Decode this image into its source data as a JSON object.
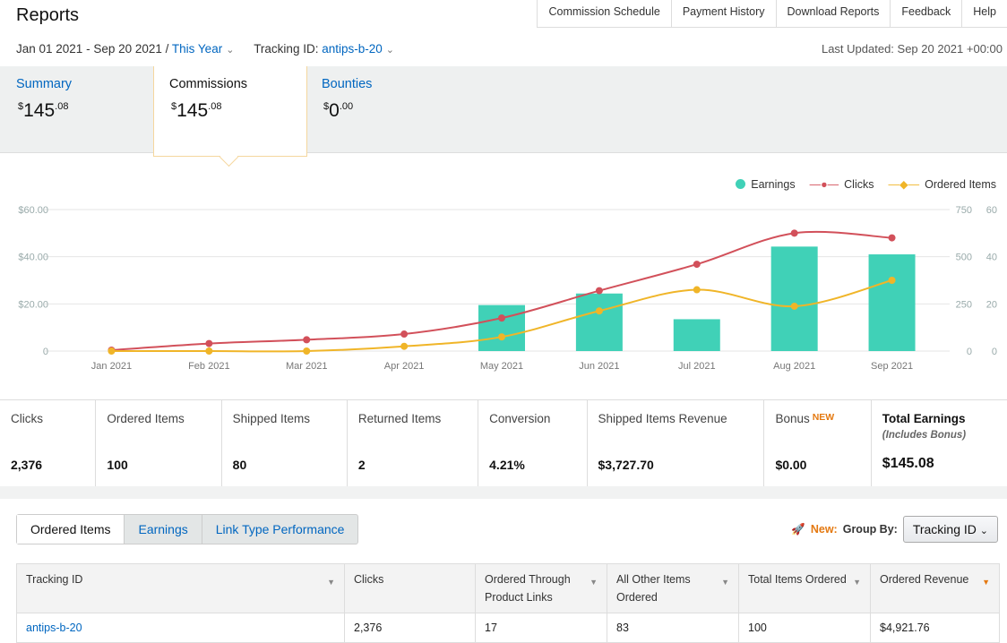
{
  "header": {
    "title": "Reports",
    "nav": [
      "Commission Schedule",
      "Payment History",
      "Download Reports",
      "Feedback",
      "Help"
    ],
    "date_range": "Jan 01 2021 - Sep 20 2021 / ",
    "date_preset": "This Year",
    "tracking_label": "Tracking ID: ",
    "tracking_value": "antips-b-20",
    "last_updated": "Last Updated: Sep 20 2021 +00:00"
  },
  "summary_tabs": [
    {
      "label": "Summary",
      "currency": "$",
      "whole": "145",
      "cents": ".08"
    },
    {
      "label": "Commissions",
      "currency": "$",
      "whole": "145",
      "cents": ".08"
    },
    {
      "label": "Bounties",
      "currency": "$",
      "whole": "0",
      "cents": ".00"
    }
  ],
  "chart_data": {
    "type": "bar",
    "categories": [
      "Jan 2021",
      "Feb 2021",
      "Mar 2021",
      "Apr 2021",
      "May 2021",
      "Jun 2021",
      "Jul 2021",
      "Aug 2021",
      "Sep 2021"
    ],
    "series": [
      {
        "name": "Earnings",
        "type": "bar",
        "axis": "left",
        "color": "#40d1b7",
        "values": [
          0,
          0,
          0,
          0,
          19.5,
          24.4,
          13.5,
          44.3,
          41.0
        ]
      },
      {
        "name": "Clicks",
        "type": "line",
        "axis": "right-1",
        "color": "#d2505a",
        "values": [
          5,
          40,
          60,
          90,
          175,
          320,
          460,
          625,
          600
        ]
      },
      {
        "name": "Ordered Items",
        "type": "line",
        "axis": "right-2",
        "color": "#f0b528",
        "values": [
          0,
          0,
          0,
          2,
          6,
          17,
          26,
          19,
          30
        ]
      }
    ],
    "y_left": {
      "ticks": [
        "0",
        "$20.00",
        "$40.00",
        "$60.00"
      ],
      "range": [
        0,
        60
      ]
    },
    "y_right_1": {
      "ticks": [
        "0",
        "250",
        "500",
        "750"
      ],
      "range": [
        0,
        750
      ]
    },
    "y_right_2": {
      "ticks": [
        "0",
        "20",
        "40",
        "60"
      ],
      "range": [
        0,
        60
      ]
    },
    "legend_position": "top-right",
    "grid": true
  },
  "stats": [
    {
      "label": "Clicks",
      "value": "2,376"
    },
    {
      "label": "Ordered Items",
      "value": "100"
    },
    {
      "label": "Shipped Items",
      "value": "80"
    },
    {
      "label": "Returned Items",
      "value": "2"
    },
    {
      "label": "Conversion",
      "value": "4.21%"
    },
    {
      "label": "Shipped Items Revenue",
      "value": "$3,727.70"
    },
    {
      "label": "Bonus",
      "badge": "NEW",
      "value": "$0.00"
    },
    {
      "label": "Total Earnings",
      "sub": "(Includes Bonus)",
      "value": "$145.08"
    }
  ],
  "bottom_tabs": [
    "Ordered Items",
    "Earnings",
    "Link Type Performance"
  ],
  "group_by": {
    "new": "New:",
    "label": "Group By:",
    "selected": "Tracking ID"
  },
  "table": {
    "headers": [
      "Tracking ID",
      "Clicks",
      "Ordered Through Product Links",
      "All Other Items Ordered",
      "Total Items Ordered",
      "Ordered Revenue"
    ],
    "rows": [
      [
        "antips-b-20",
        "2,376",
        "17",
        "83",
        "100",
        "$4,921.76"
      ]
    ]
  }
}
